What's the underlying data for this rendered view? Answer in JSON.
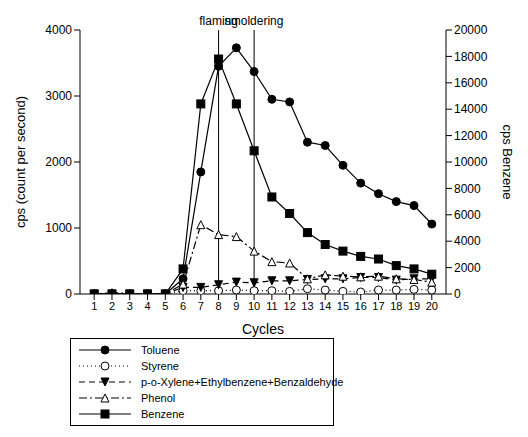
{
  "chart_data": {
    "type": "line",
    "x": [
      1,
      2,
      3,
      4,
      5,
      6,
      7,
      8,
      9,
      10,
      11,
      12,
      13,
      14,
      15,
      16,
      17,
      18,
      19,
      20
    ],
    "xlabel": "Cycles",
    "ylabel": "cps (count per second)",
    "y2label": "cps Benzene",
    "xlim": [
      0.2,
      20.8
    ],
    "xticks": [
      1,
      2,
      3,
      4,
      5,
      6,
      7,
      8,
      9,
      10,
      11,
      12,
      13,
      14,
      15,
      16,
      17,
      18,
      19,
      20
    ],
    "ylim": [
      0,
      4000
    ],
    "yticks": [
      0,
      1000,
      2000,
      3000,
      4000
    ],
    "y2lim": [
      0,
      20000
    ],
    "y2ticks": [
      0,
      2000,
      4000,
      6000,
      8000,
      10000,
      12000,
      14000,
      16000,
      18000,
      20000
    ],
    "annotations": [
      {
        "x": 8,
        "label": "flaming"
      },
      {
        "x": 10,
        "label": "smoldering"
      }
    ],
    "grid": false,
    "legend": "bottom",
    "series": [
      {
        "name": "Toluene",
        "color": "#000000",
        "marker": "circle",
        "line_style": "solid",
        "values": [
          0,
          0,
          0,
          0,
          0,
          230,
          1850,
          3450,
          3730,
          3370,
          2950,
          2910,
          2300,
          2250,
          1950,
          1680,
          1520,
          1400,
          1340,
          1060
        ]
      },
      {
        "name": "Styrene",
        "color": "#000000",
        "marker": "open_circle",
        "line_style": "dotted",
        "values": [
          0,
          0,
          0,
          0,
          0,
          50,
          50,
          50,
          60,
          50,
          50,
          40,
          80,
          60,
          40,
          30,
          60,
          60,
          70,
          60
        ]
      },
      {
        "name": "p-o-Xylene+Ethylbenzene+Benzaldehyde",
        "color": "#000000",
        "marker": "triangle_down",
        "line_style": "dashed",
        "values": [
          0,
          0,
          0,
          0,
          0,
          100,
          100,
          140,
          180,
          170,
          200,
          200,
          220,
          230,
          230,
          250,
          250,
          210,
          230,
          230
        ]
      },
      {
        "name": "Phenol",
        "color": "#000000",
        "marker": "open_triangle",
        "line_style": "dashdot",
        "values": [
          0,
          20,
          10,
          0,
          0,
          150,
          1050,
          900,
          870,
          650,
          490,
          470,
          230,
          290,
          270,
          260,
          270,
          230,
          220,
          180
        ]
      },
      {
        "name": "Benzene",
        "color": "#000000",
        "marker": "square",
        "line_style": "solid",
        "axis": "y2",
        "values": [
          0,
          0,
          0,
          0,
          0,
          1900,
          14400,
          17800,
          14400,
          10850,
          7350,
          6100,
          4650,
          3750,
          3250,
          2850,
          2650,
          2150,
          1900,
          1500
        ]
      }
    ]
  }
}
